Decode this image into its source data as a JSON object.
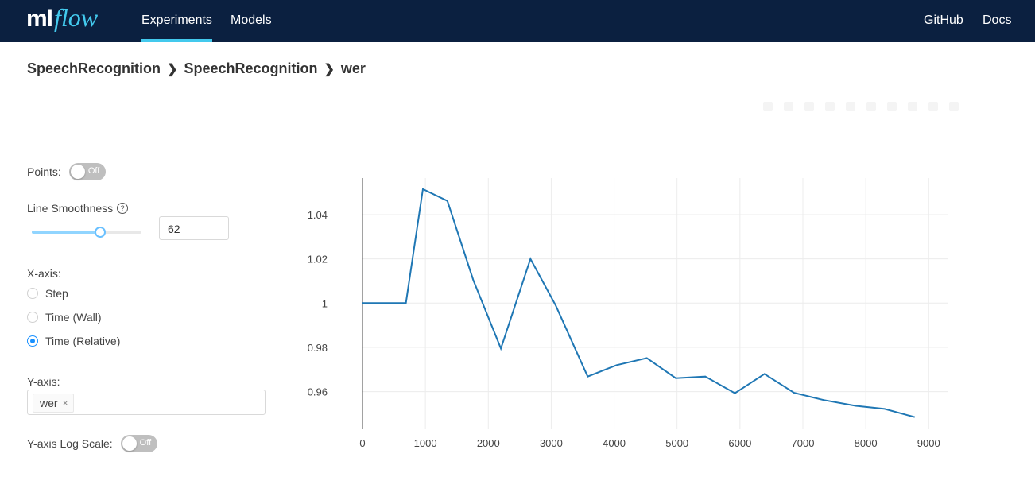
{
  "nav": {
    "logo_ml": "ml",
    "logo_flow": "flow",
    "experiments": "Experiments",
    "models": "Models",
    "github": "GitHub",
    "docs": "Docs"
  },
  "breadcrumb": {
    "experiment": "SpeechRecognition",
    "run": "SpeechRecognition",
    "metric": "wer"
  },
  "controls": {
    "points_label": "Points:",
    "points_toggle": "Off",
    "smoothness_label": "Line Smoothness",
    "smoothness_help": "?",
    "smoothness_value": "62",
    "smoothness_fraction": 0.62,
    "xaxis_label": "X-axis:",
    "xaxis_options": [
      "Step",
      "Time (Wall)",
      "Time (Relative)"
    ],
    "xaxis_selected": "Time (Relative)",
    "yaxis_label": "Y-axis:",
    "yaxis_tag": "wer",
    "yaxis_tag_close": "×",
    "log_label": "Y-axis Log Scale:",
    "log_toggle": "Off"
  },
  "chart_data": {
    "type": "line",
    "title": "",
    "xlabel": "",
    "ylabel": "",
    "xlim": [
      0,
      9300
    ],
    "ylim": [
      0.943,
      1.0565
    ],
    "xticks": [
      0,
      1000,
      2000,
      3000,
      4000,
      5000,
      6000,
      7000,
      8000,
      9000
    ],
    "yticks": [
      0.96,
      0.98,
      1,
      1.02,
      1.04
    ],
    "ytick_labels": [
      "0.96",
      "0.98",
      "1",
      "1.02",
      "1.04"
    ],
    "grid": true,
    "line_color": "#1f77b4",
    "series": [
      {
        "x": [
          0,
          690,
          960,
          1350,
          1760,
          2200,
          2670,
          3070,
          3580,
          4040,
          4520,
          4980,
          5450,
          5920,
          6390,
          6860,
          7330,
          7840,
          8300,
          8780
        ],
        "y": [
          1.0,
          1.0,
          1.0515,
          1.0462,
          1.0105,
          0.9795,
          1.02,
          0.999,
          0.9668,
          0.972,
          0.9752,
          0.9661,
          0.9668,
          0.9593,
          0.968,
          0.9595,
          0.9562,
          0.9536,
          0.9522,
          0.9485
        ]
      }
    ]
  }
}
